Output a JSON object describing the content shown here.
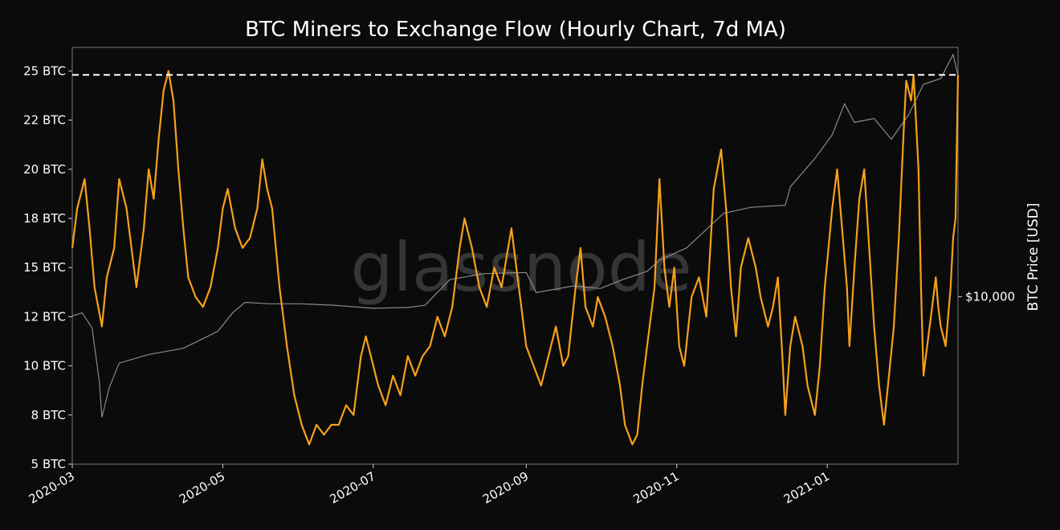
{
  "chart_data": {
    "type": "line",
    "title": "BTC Miners to Exchange Flow (Hourly Chart, 7d MA)",
    "watermark": "glassnode",
    "x_axis": {
      "type": "date",
      "range": [
        "2020-03-01",
        "2021-02-23"
      ],
      "tick_labels": [
        "2020-03",
        "2020-05",
        "2020-07",
        "2020-09",
        "2020-11",
        "2021-01"
      ],
      "tick_dates": [
        "2020-03-01",
        "2020-05-01",
        "2020-07-01",
        "2020-09-01",
        "2020-11-01",
        "2021-01-01"
      ]
    },
    "y_axis_left": {
      "range": [
        5,
        26.2
      ],
      "tick_labels": [
        "5 BTC",
        "8 BTC",
        "10 BTC",
        "12 BTC",
        "15 BTC",
        "18 BTC",
        "20 BTC",
        "22 BTC",
        "25 BTC"
      ],
      "tick_values": [
        5,
        7.5,
        10,
        12.5,
        15,
        17.5,
        20,
        22.5,
        25
      ]
    },
    "y_axis_right": {
      "label": "BTC Price [USD]",
      "scale": "log",
      "range": [
        3000,
        60000
      ],
      "tick_labels": [
        "$10,000"
      ],
      "tick_values": [
        10000
      ]
    },
    "reference_line": {
      "value": 24.8,
      "style": "dashed",
      "color": "#ffffff"
    },
    "series": [
      {
        "axis": "left",
        "color": "#f7a11a",
        "points": [
          [
            "2020-03-01",
            16.0
          ],
          [
            "2020-03-03",
            18.0
          ],
          [
            "2020-03-06",
            19.5
          ],
          [
            "2020-03-08",
            17.0
          ],
          [
            "2020-03-10",
            14.0
          ],
          [
            "2020-03-13",
            12.0
          ],
          [
            "2020-03-15",
            14.5
          ],
          [
            "2020-03-18",
            16.0
          ],
          [
            "2020-03-20",
            19.5
          ],
          [
            "2020-03-23",
            18.0
          ],
          [
            "2020-03-25",
            16.0
          ],
          [
            "2020-03-27",
            14.0
          ],
          [
            "2020-03-30",
            17.0
          ],
          [
            "2020-04-01",
            20.0
          ],
          [
            "2020-04-03",
            18.5
          ],
          [
            "2020-04-05",
            21.5
          ],
          [
            "2020-04-07",
            24.0
          ],
          [
            "2020-04-09",
            25.0
          ],
          [
            "2020-04-11",
            23.5
          ],
          [
            "2020-04-13",
            20.0
          ],
          [
            "2020-04-15",
            17.0
          ],
          [
            "2020-04-17",
            14.5
          ],
          [
            "2020-04-20",
            13.5
          ],
          [
            "2020-04-23",
            13.0
          ],
          [
            "2020-04-26",
            14.0
          ],
          [
            "2020-04-29",
            16.0
          ],
          [
            "2020-05-01",
            18.0
          ],
          [
            "2020-05-03",
            19.0
          ],
          [
            "2020-05-06",
            17.0
          ],
          [
            "2020-05-09",
            16.0
          ],
          [
            "2020-05-12",
            16.5
          ],
          [
            "2020-05-15",
            18.0
          ],
          [
            "2020-05-17",
            20.5
          ],
          [
            "2020-05-19",
            19.0
          ],
          [
            "2020-05-21",
            18.0
          ],
          [
            "2020-05-24",
            14.0
          ],
          [
            "2020-05-27",
            11.0
          ],
          [
            "2020-05-30",
            8.5
          ],
          [
            "2020-06-02",
            7.0
          ],
          [
            "2020-06-05",
            6.0
          ],
          [
            "2020-06-08",
            7.0
          ],
          [
            "2020-06-11",
            6.5
          ],
          [
            "2020-06-14",
            7.0
          ],
          [
            "2020-06-17",
            7.0
          ],
          [
            "2020-06-20",
            8.0
          ],
          [
            "2020-06-23",
            7.5
          ],
          [
            "2020-06-26",
            10.5
          ],
          [
            "2020-06-28",
            11.5
          ],
          [
            "2020-06-30",
            10.5
          ],
          [
            "2020-07-03",
            9.0
          ],
          [
            "2020-07-06",
            8.0
          ],
          [
            "2020-07-09",
            9.5
          ],
          [
            "2020-07-12",
            8.5
          ],
          [
            "2020-07-15",
            10.5
          ],
          [
            "2020-07-18",
            9.5
          ],
          [
            "2020-07-21",
            10.5
          ],
          [
            "2020-07-24",
            11.0
          ],
          [
            "2020-07-27",
            12.5
          ],
          [
            "2020-07-30",
            11.5
          ],
          [
            "2020-08-02",
            13.0
          ],
          [
            "2020-08-05",
            16.0
          ],
          [
            "2020-08-07",
            17.5
          ],
          [
            "2020-08-10",
            16.0
          ],
          [
            "2020-08-13",
            14.0
          ],
          [
            "2020-08-16",
            13.0
          ],
          [
            "2020-08-19",
            15.0
          ],
          [
            "2020-08-22",
            14.0
          ],
          [
            "2020-08-24",
            15.5
          ],
          [
            "2020-08-26",
            17.0
          ],
          [
            "2020-08-28",
            15.0
          ],
          [
            "2020-08-30",
            13.0
          ],
          [
            "2020-09-01",
            11.0
          ],
          [
            "2020-09-04",
            10.0
          ],
          [
            "2020-09-07",
            9.0
          ],
          [
            "2020-09-10",
            10.5
          ],
          [
            "2020-09-13",
            12.0
          ],
          [
            "2020-09-16",
            10.0
          ],
          [
            "2020-09-18",
            10.5
          ],
          [
            "2020-09-21",
            14.0
          ],
          [
            "2020-09-23",
            16.0
          ],
          [
            "2020-09-25",
            13.0
          ],
          [
            "2020-09-28",
            12.0
          ],
          [
            "2020-09-30",
            13.5
          ],
          [
            "2020-10-03",
            12.5
          ],
          [
            "2020-10-06",
            11.0
          ],
          [
            "2020-10-09",
            9.0
          ],
          [
            "2020-10-11",
            7.0
          ],
          [
            "2020-10-14",
            6.0
          ],
          [
            "2020-10-16",
            6.5
          ],
          [
            "2020-10-18",
            9.0
          ],
          [
            "2020-10-21",
            12.0
          ],
          [
            "2020-10-23",
            14.0
          ],
          [
            "2020-10-25",
            19.5
          ],
          [
            "2020-10-27",
            15.0
          ],
          [
            "2020-10-29",
            13.0
          ],
          [
            "2020-10-31",
            15.0
          ],
          [
            "2020-11-02",
            11.0
          ],
          [
            "2020-11-04",
            10.0
          ],
          [
            "2020-11-07",
            13.5
          ],
          [
            "2020-11-10",
            14.5
          ],
          [
            "2020-11-13",
            12.5
          ],
          [
            "2020-11-16",
            19.0
          ],
          [
            "2020-11-19",
            21.0
          ],
          [
            "2020-11-21",
            18.0
          ],
          [
            "2020-11-23",
            14.0
          ],
          [
            "2020-11-25",
            11.5
          ],
          [
            "2020-11-27",
            15.0
          ],
          [
            "2020-11-30",
            16.5
          ],
          [
            "2020-12-03",
            15.0
          ],
          [
            "2020-12-05",
            13.5
          ],
          [
            "2020-12-08",
            12.0
          ],
          [
            "2020-12-10",
            13.0
          ],
          [
            "2020-12-12",
            14.5
          ],
          [
            "2020-12-14",
            10.0
          ],
          [
            "2020-12-15",
            7.5
          ],
          [
            "2020-12-17",
            11.0
          ],
          [
            "2020-12-19",
            12.5
          ],
          [
            "2020-12-22",
            11.0
          ],
          [
            "2020-12-24",
            9.0
          ],
          [
            "2020-12-26",
            8.0
          ],
          [
            "2020-12-27",
            7.5
          ],
          [
            "2020-12-29",
            10.0
          ],
          [
            "2020-12-31",
            14.0
          ],
          [
            "2021-01-03",
            18.0
          ],
          [
            "2021-01-05",
            20.0
          ],
          [
            "2021-01-07",
            17.0
          ],
          [
            "2021-01-09",
            14.0
          ],
          [
            "2021-01-10",
            11.0
          ],
          [
            "2021-01-12",
            15.0
          ],
          [
            "2021-01-14",
            18.5
          ],
          [
            "2021-01-16",
            20.0
          ],
          [
            "2021-01-18",
            16.0
          ],
          [
            "2021-01-20",
            12.0
          ],
          [
            "2021-01-22",
            9.0
          ],
          [
            "2021-01-24",
            7.0
          ],
          [
            "2021-01-26",
            9.5
          ],
          [
            "2021-01-28",
            12.0
          ],
          [
            "2021-01-30",
            16.5
          ],
          [
            "2021-02-01",
            22.0
          ],
          [
            "2021-02-02",
            24.5
          ],
          [
            "2021-02-04",
            23.5
          ],
          [
            "2021-02-05",
            24.8
          ],
          [
            "2021-02-07",
            20.0
          ],
          [
            "2021-02-08",
            14.0
          ],
          [
            "2021-02-09",
            9.5
          ],
          [
            "2021-02-11",
            11.5
          ],
          [
            "2021-02-13",
            13.5
          ],
          [
            "2021-02-14",
            14.5
          ],
          [
            "2021-02-15",
            13.0
          ],
          [
            "2021-02-16",
            12.0
          ],
          [
            "2021-02-17",
            11.5
          ],
          [
            "2021-02-18",
            11.0
          ],
          [
            "2021-02-19",
            12.5
          ],
          [
            "2021-02-20",
            14.0
          ],
          [
            "2021-02-21",
            16.5
          ],
          [
            "2021-02-22",
            17.5
          ],
          [
            "2021-02-23",
            24.8
          ]
        ]
      },
      {
        "axis": "right",
        "color": "#8a8a8a",
        "points": [
          [
            "2020-03-01",
            8700
          ],
          [
            "2020-03-05",
            8900
          ],
          [
            "2020-03-09",
            8000
          ],
          [
            "2020-03-12",
            5400
          ],
          [
            "2020-03-13",
            4200
          ],
          [
            "2020-03-16",
            5200
          ],
          [
            "2020-03-20",
            6200
          ],
          [
            "2020-04-01",
            6600
          ],
          [
            "2020-04-15",
            6900
          ],
          [
            "2020-04-29",
            7800
          ],
          [
            "2020-05-05",
            8900
          ],
          [
            "2020-05-10",
            9600
          ],
          [
            "2020-05-20",
            9500
          ],
          [
            "2020-06-01",
            9500
          ],
          [
            "2020-06-15",
            9400
          ],
          [
            "2020-07-01",
            9200
          ],
          [
            "2020-07-15",
            9250
          ],
          [
            "2020-07-22",
            9400
          ],
          [
            "2020-08-01",
            11300
          ],
          [
            "2020-08-15",
            11800
          ],
          [
            "2020-09-01",
            11900
          ],
          [
            "2020-09-05",
            10300
          ],
          [
            "2020-09-20",
            10800
          ],
          [
            "2020-10-01",
            10600
          ],
          [
            "2020-10-10",
            11300
          ],
          [
            "2020-10-20",
            12000
          ],
          [
            "2020-10-25",
            13000
          ],
          [
            "2020-11-05",
            14200
          ],
          [
            "2020-11-20",
            18200
          ],
          [
            "2020-12-01",
            19000
          ],
          [
            "2020-12-15",
            19300
          ],
          [
            "2020-12-17",
            22000
          ],
          [
            "2020-12-27",
            27000
          ],
          [
            "2021-01-03",
            32000
          ],
          [
            "2021-01-08",
            40000
          ],
          [
            "2021-01-12",
            35000
          ],
          [
            "2021-01-20",
            36000
          ],
          [
            "2021-01-27",
            31000
          ],
          [
            "2021-02-03",
            37000
          ],
          [
            "2021-02-09",
            46000
          ],
          [
            "2021-02-16",
            48000
          ],
          [
            "2021-02-21",
            57000
          ],
          [
            "2021-02-23",
            49000
          ]
        ]
      }
    ]
  }
}
